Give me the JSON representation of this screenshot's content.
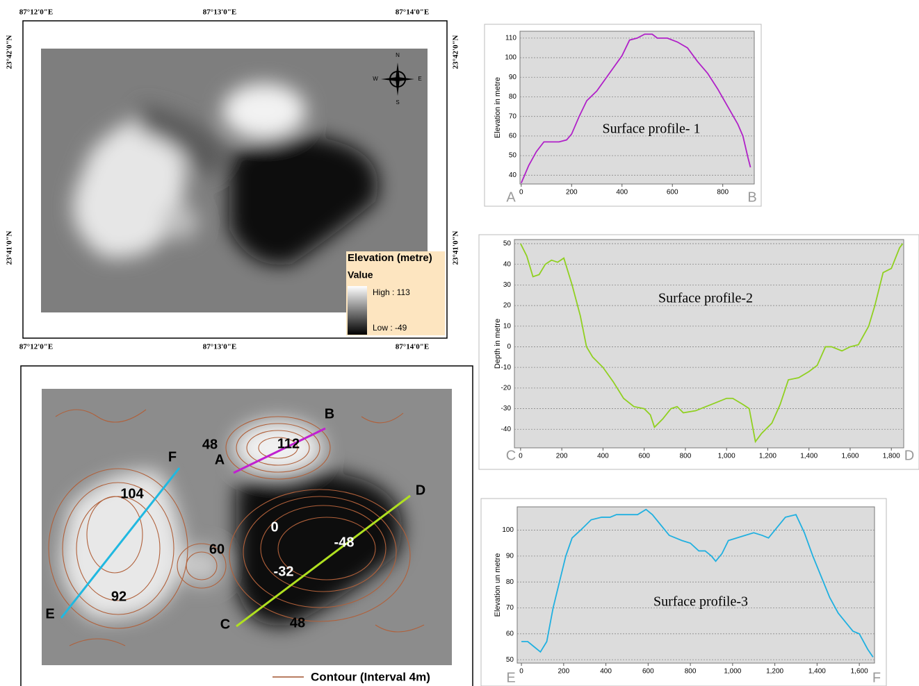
{
  "chart_data": [
    {
      "type": "line",
      "title": "Surface profile- 1",
      "y_label": "Elevation in metre",
      "start_label": "A",
      "end_label": "B",
      "color": "#b020c8",
      "grid": true,
      "xlim": [
        -5,
        925
      ],
      "ylim": [
        35.5,
        113.5
      ],
      "xticks": [
        0,
        200,
        400,
        600,
        800
      ],
      "yticks": [
        40,
        50,
        60,
        70,
        80,
        90,
        100,
        110
      ],
      "x": [
        0,
        30,
        60,
        90,
        150,
        180,
        200,
        230,
        260,
        300,
        350,
        400,
        430,
        460,
        490,
        520,
        540,
        580,
        620,
        660,
        700,
        740,
        780,
        820,
        860,
        880,
        900,
        910
      ],
      "values": [
        36,
        45,
        52,
        57,
        57,
        58,
        61,
        70,
        78,
        83,
        92,
        101,
        109,
        110,
        112,
        112,
        110,
        110,
        108,
        105,
        98,
        92,
        84,
        75,
        66,
        60,
        49,
        44
      ]
    },
    {
      "type": "line",
      "title": "Surface profile-2",
      "y_label": "Depth in metre",
      "start_label": "C",
      "end_label": "D",
      "color": "#90d020",
      "grid": true,
      "xlim": [
        -30,
        1860
      ],
      "ylim": [
        -49,
        52
      ],
      "xticks": [
        0,
        200,
        400,
        600,
        800,
        {
          "value": 1000,
          "label": "1,000"
        },
        {
          "value": 1200,
          "label": "1,200"
        },
        {
          "value": 1400,
          "label": "1,400"
        },
        {
          "value": 1600,
          "label": "1,600"
        },
        {
          "value": 1800,
          "label": "1,800"
        }
      ],
      "yticks": [
        50,
        40,
        30,
        20,
        10,
        0,
        -10,
        -20,
        -30,
        -40
      ],
      "x": [
        0,
        30,
        60,
        90,
        120,
        150,
        180,
        210,
        250,
        290,
        320,
        350,
        400,
        450,
        500,
        550,
        600,
        630,
        650,
        690,
        730,
        760,
        790,
        850,
        900,
        950,
        1000,
        1030,
        1080,
        1110,
        1140,
        1170,
        1220,
        1260,
        1300,
        1350,
        1400,
        1440,
        1480,
        1510,
        1560,
        1600,
        1640,
        1690,
        1720,
        1760,
        1800,
        1840,
        1855
      ],
      "values": [
        50,
        44,
        34,
        35,
        40,
        42,
        41,
        43,
        30,
        15,
        0,
        -5,
        -10,
        -17,
        -25,
        -29,
        -30,
        -33,
        -39,
        -35,
        -30,
        -29,
        -32,
        -31,
        -29,
        -27,
        -25,
        -25,
        -28,
        -30,
        -46,
        -42,
        -37,
        -28,
        -16,
        -15,
        -12,
        -9,
        0,
        0,
        -2,
        0,
        1,
        10,
        20,
        36,
        38,
        48,
        50
      ]
    },
    {
      "type": "line",
      "title": "Surface profile-3",
      "y_label": "Elevation un metre",
      "start_label": "E",
      "end_label": "F",
      "color": "#20b0e0",
      "grid": true,
      "xlim": [
        -20,
        1672
      ],
      "ylim": [
        48.7,
        109
      ],
      "xticks": [
        0,
        200,
        400,
        600,
        800,
        {
          "value": 1000,
          "label": "1,000"
        },
        {
          "value": 1200,
          "label": "1,200"
        },
        {
          "value": 1400,
          "label": "1,400"
        },
        {
          "value": 1600,
          "label": "1,600"
        }
      ],
      "yticks": [
        50,
        60,
        70,
        80,
        90,
        100
      ],
      "x": [
        0,
        30,
        60,
        90,
        120,
        150,
        180,
        210,
        240,
        280,
        330,
        380,
        420,
        450,
        500,
        550,
        590,
        620,
        660,
        700,
        760,
        800,
        840,
        870,
        900,
        920,
        950,
        980,
        1020,
        1060,
        1100,
        1140,
        1170,
        1200,
        1250,
        1300,
        1340,
        1380,
        1420,
        1460,
        1500,
        1540,
        1570,
        1600,
        1640,
        1665
      ],
      "values": [
        57,
        57,
        55,
        53,
        57,
        70,
        80,
        90,
        97,
        100,
        104,
        105,
        105,
        106,
        106,
        106,
        108,
        106,
        102,
        98,
        96,
        95,
        92,
        92,
        90,
        88,
        91,
        96,
        97,
        98,
        99,
        98,
        97,
        100,
        105,
        106,
        99,
        90,
        82,
        74,
        68,
        64,
        61,
        60,
        54,
        51
      ]
    }
  ],
  "maps": {
    "top": {
      "lon_top": [
        "87°12'0\"E",
        "87°13'0\"E",
        "87°14'0\"E"
      ],
      "lon_bottom": [
        "87°12'0\"E",
        "87°13'0\"E",
        "87°14'0\"E"
      ],
      "lat_left": [
        "23°42'0\"N",
        "23°41'0\"N"
      ],
      "lat_right": [
        "23°42'0\"N",
        "23°41'0\"N"
      ],
      "compass": [
        "N",
        "S",
        "E",
        "W"
      ],
      "legend": {
        "title": "Elevation (metre)",
        "subtitle": "Value",
        "high": "High : 113",
        "low": "Low : -49"
      }
    },
    "bottom": {
      "points": [
        "A",
        "B",
        "C",
        "D",
        "E",
        "F"
      ],
      "spot_labels": [
        "48",
        "112",
        "104",
        "0",
        "-48",
        "60",
        "-32",
        "92",
        "48"
      ],
      "legend": "Contour (Interval 4m)"
    }
  }
}
